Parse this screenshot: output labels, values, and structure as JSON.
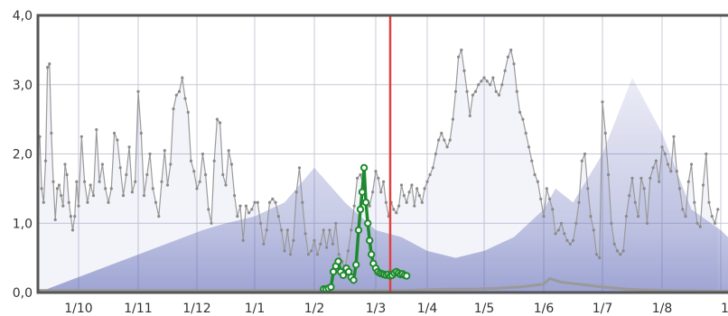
{
  "chart_data": {
    "type": "line",
    "title": "",
    "xlabel": "",
    "ylabel": "",
    "ylim": [
      0,
      4
    ],
    "y_ticks": [
      "0,0",
      "1,0",
      "2,0",
      "3,0",
      "4,0"
    ],
    "x_ticks": [
      "1/10",
      "1/11",
      "1/12",
      "1/1",
      "1/2",
      "1/3",
      "1/4",
      "1/5",
      "1/6",
      "1/7",
      "1/8",
      "1/9"
    ],
    "grid": true,
    "colors": {
      "background": "#ffffff",
      "band": "#5a64b4",
      "gray_series": "#9a9a9a",
      "green_series": "#1e8a2e",
      "marker_line": "#e04040",
      "frame": "#555555",
      "grid": "#c8c8d8"
    },
    "marker_line_x": "1/3",
    "series": [
      {
        "role": "gray-line",
        "points": [
          [
            "1/10",
            2.25
          ],
          [
            "1/10",
            1.5
          ],
          [
            "1/10",
            1.3
          ],
          [
            "1/10",
            1.9
          ],
          [
            "1/10",
            3.25
          ],
          [
            "1/10",
            3.3
          ],
          [
            "1/10",
            2.3
          ],
          [
            "1/10",
            1.6
          ],
          [
            "1/10",
            1.05
          ],
          [
            "1/10",
            1.5
          ],
          [
            "1/10",
            1.55
          ],
          [
            "1/10",
            1.4
          ],
          [
            "1/10",
            1.25
          ],
          [
            "1/10",
            1.85
          ],
          [
            "1/10",
            1.7
          ],
          [
            "1/10",
            1.3
          ],
          [
            "1/10",
            1.1
          ],
          [
            "1/10",
            0.9
          ],
          [
            "1/10",
            1.1
          ],
          [
            "1/10",
            1.6
          ],
          [
            "1/11",
            1.25
          ],
          [
            "1/11",
            2.25
          ],
          [
            "1/11",
            1.6
          ],
          [
            "1/11",
            1.3
          ],
          [
            "1/11",
            1.55
          ],
          [
            "1/11",
            1.4
          ],
          [
            "1/11",
            2.35
          ],
          [
            "1/11",
            1.6
          ],
          [
            "1/11",
            1.85
          ],
          [
            "1/11",
            1.5
          ],
          [
            "1/11",
            1.3
          ],
          [
            "1/11",
            1.5
          ],
          [
            "1/11",
            2.3
          ],
          [
            "1/11",
            2.2
          ],
          [
            "1/11",
            1.8
          ],
          [
            "1/11",
            1.4
          ],
          [
            "1/11",
            1.7
          ],
          [
            "1/11",
            2.1
          ],
          [
            "1/11",
            1.45
          ],
          [
            "1/11",
            1.6
          ],
          [
            "1/12",
            2.9
          ],
          [
            "1/12",
            2.3
          ],
          [
            "1/12",
            1.4
          ],
          [
            "1/12",
            1.7
          ],
          [
            "1/12",
            2.0
          ],
          [
            "1/12",
            1.5
          ],
          [
            "1/12",
            1.3
          ],
          [
            "1/12",
            1.1
          ],
          [
            "1/12",
            1.6
          ],
          [
            "1/12",
            2.05
          ],
          [
            "1/12",
            1.55
          ],
          [
            "1/12",
            1.85
          ],
          [
            "1/12",
            2.65
          ],
          [
            "1/12",
            2.85
          ],
          [
            "1/12",
            2.9
          ],
          [
            "1/12",
            3.1
          ],
          [
            "1/12",
            2.8
          ],
          [
            "1/12",
            2.6
          ],
          [
            "1/12",
            1.9
          ],
          [
            "1/12",
            1.75
          ],
          [
            "1/1",
            1.5
          ],
          [
            "1/1",
            1.6
          ],
          [
            "1/1",
            2.0
          ],
          [
            "1/1",
            1.7
          ],
          [
            "1/1",
            1.2
          ],
          [
            "1/1",
            1.0
          ],
          [
            "1/1",
            1.9
          ],
          [
            "1/1",
            2.5
          ],
          [
            "1/1",
            2.45
          ],
          [
            "1/1",
            1.7
          ],
          [
            "1/1",
            1.55
          ],
          [
            "1/1",
            2.05
          ],
          [
            "1/1",
            1.85
          ],
          [
            "1/1",
            1.4
          ],
          [
            "1/1",
            1.1
          ],
          [
            "1/1",
            1.25
          ],
          [
            "1/1",
            0.75
          ],
          [
            "1/1",
            1.25
          ],
          [
            "1/1",
            1.15
          ],
          [
            "1/1",
            1.2
          ],
          [
            "1/2",
            1.3
          ],
          [
            "1/2",
            1.3
          ],
          [
            "1/2",
            1.0
          ],
          [
            "1/2",
            0.7
          ],
          [
            "1/2",
            0.9
          ],
          [
            "1/2",
            1.3
          ],
          [
            "1/2",
            1.35
          ],
          [
            "1/2",
            1.3
          ],
          [
            "1/2",
            1.1
          ],
          [
            "1/2",
            0.9
          ],
          [
            "1/2",
            0.6
          ],
          [
            "1/2",
            0.9
          ],
          [
            "1/2",
            0.55
          ],
          [
            "1/2",
            0.75
          ],
          [
            "1/2",
            1.45
          ],
          [
            "1/2",
            1.8
          ],
          [
            "1/2",
            1.3
          ],
          [
            "1/2",
            0.85
          ],
          [
            "1/2",
            0.55
          ],
          [
            "1/2",
            0.6
          ],
          [
            "1/3",
            0.75
          ],
          [
            "1/3",
            0.55
          ],
          [
            "1/3",
            0.7
          ],
          [
            "1/3",
            0.9
          ],
          [
            "1/3",
            0.65
          ],
          [
            "1/3",
            0.9
          ],
          [
            "1/3",
            0.7
          ],
          [
            "1/3",
            1.0
          ],
          [
            "1/3",
            0.55
          ],
          [
            "1/3",
            0.45
          ],
          [
            "1/3",
            0.35
          ],
          [
            "1/3",
            0.6
          ],
          [
            "1/3",
            0.9
          ],
          [
            "1/3",
            1.25
          ],
          [
            "1/3",
            1.65
          ],
          [
            "1/3",
            1.7
          ],
          [
            "1/3",
            1.55
          ],
          [
            "1/3",
            1.3
          ],
          [
            "1/3",
            1.25
          ],
          [
            "1/3",
            1.45
          ],
          [
            "1/4",
            1.75
          ],
          [
            "1/4",
            1.65
          ],
          [
            "1/4",
            1.45
          ],
          [
            "1/4",
            1.6
          ],
          [
            "1/4",
            1.3
          ],
          [
            "1/4",
            1.1
          ],
          [
            "1/4",
            1.3
          ],
          [
            "1/4",
            1.2
          ],
          [
            "1/4",
            1.15
          ],
          [
            "1/4",
            1.25
          ],
          [
            "1/4",
            1.55
          ],
          [
            "1/4",
            1.4
          ],
          [
            "1/4",
            1.3
          ],
          [
            "1/4",
            1.45
          ],
          [
            "1/4",
            1.55
          ],
          [
            "1/4",
            1.25
          ],
          [
            "1/4",
            1.5
          ],
          [
            "1/4",
            1.4
          ],
          [
            "1/4",
            1.3
          ],
          [
            "1/4",
            1.5
          ],
          [
            "1/5",
            1.6
          ],
          [
            "1/5",
            1.7
          ],
          [
            "1/5",
            1.8
          ],
          [
            "1/5",
            2.0
          ],
          [
            "1/5",
            2.2
          ],
          [
            "1/5",
            2.3
          ],
          [
            "1/5",
            2.2
          ],
          [
            "1/5",
            2.1
          ],
          [
            "1/5",
            2.2
          ],
          [
            "1/5",
            2.5
          ],
          [
            "1/5",
            2.9
          ],
          [
            "1/5",
            3.4
          ],
          [
            "1/5",
            3.5
          ],
          [
            "1/5",
            3.2
          ],
          [
            "1/5",
            2.9
          ],
          [
            "1/5",
            2.55
          ],
          [
            "1/5",
            2.85
          ],
          [
            "1/5",
            2.9
          ],
          [
            "1/5",
            3.0
          ],
          [
            "1/5",
            3.05
          ],
          [
            "1/6",
            3.1
          ],
          [
            "1/6",
            3.05
          ],
          [
            "1/6",
            3.0
          ],
          [
            "1/6",
            3.1
          ],
          [
            "1/6",
            2.9
          ],
          [
            "1/6",
            2.85
          ],
          [
            "1/6",
            3.0
          ],
          [
            "1/6",
            3.2
          ],
          [
            "1/6",
            3.4
          ],
          [
            "1/6",
            3.5
          ],
          [
            "1/6",
            3.3
          ],
          [
            "1/6",
            2.9
          ],
          [
            "1/6",
            2.6
          ],
          [
            "1/6",
            2.5
          ],
          [
            "1/6",
            2.3
          ],
          [
            "1/6",
            2.1
          ],
          [
            "1/6",
            1.9
          ],
          [
            "1/6",
            1.7
          ],
          [
            "1/6",
            1.6
          ],
          [
            "1/6",
            1.35
          ],
          [
            "1/7",
            1.1
          ],
          [
            "1/7",
            1.5
          ],
          [
            "1/7",
            1.35
          ],
          [
            "1/7",
            1.2
          ],
          [
            "1/7",
            0.85
          ],
          [
            "1/7",
            0.9
          ],
          [
            "1/7",
            1.0
          ],
          [
            "1/7",
            0.85
          ],
          [
            "1/7",
            0.75
          ],
          [
            "1/7",
            0.7
          ],
          [
            "1/7",
            0.75
          ],
          [
            "1/7",
            1.0
          ],
          [
            "1/7",
            1.3
          ],
          [
            "1/7",
            1.9
          ],
          [
            "1/7",
            2.0
          ],
          [
            "1/7",
            1.5
          ],
          [
            "1/7",
            1.1
          ],
          [
            "1/7",
            0.9
          ],
          [
            "1/7",
            0.55
          ],
          [
            "1/7",
            0.5
          ],
          [
            "1/8",
            2.75
          ],
          [
            "1/8",
            2.3
          ],
          [
            "1/8",
            1.7
          ],
          [
            "1/8",
            1.0
          ],
          [
            "1/8",
            0.7
          ],
          [
            "1/8",
            0.6
          ],
          [
            "1/8",
            0.55
          ],
          [
            "1/8",
            0.6
          ],
          [
            "1/8",
            1.1
          ],
          [
            "1/8",
            1.4
          ],
          [
            "1/8",
            1.65
          ],
          [
            "1/8",
            1.3
          ],
          [
            "1/8",
            1.1
          ],
          [
            "1/8",
            1.65
          ],
          [
            "1/8",
            1.5
          ],
          [
            "1/8",
            1.0
          ],
          [
            "1/8",
            1.65
          ],
          [
            "1/8",
            1.8
          ],
          [
            "1/8",
            1.9
          ],
          [
            "1/8",
            1.6
          ],
          [
            "1/9",
            2.1
          ],
          [
            "1/9",
            2.0
          ],
          [
            "1/9",
            1.85
          ],
          [
            "1/9",
            1.75
          ],
          [
            "1/9",
            2.25
          ],
          [
            "1/9",
            1.75
          ],
          [
            "1/9",
            1.5
          ],
          [
            "1/9",
            1.2
          ],
          [
            "1/9",
            1.1
          ],
          [
            "1/9",
            1.6
          ],
          [
            "1/9",
            1.85
          ],
          [
            "1/9",
            1.3
          ],
          [
            "1/9",
            1.0
          ],
          [
            "1/9",
            0.95
          ],
          [
            "1/9",
            1.55
          ],
          [
            "1/9",
            2.0
          ],
          [
            "1/9",
            1.3
          ],
          [
            "1/9",
            1.1
          ],
          [
            "1/9",
            1.0
          ],
          [
            "1/9",
            1.2
          ]
        ]
      },
      {
        "role": "green-line",
        "points": [
          [
            0.15,
            0.05
          ],
          [
            0.19,
            0.05
          ],
          [
            0.23,
            0.06
          ],
          [
            0.27,
            0.08
          ],
          [
            0.31,
            0.3
          ],
          [
            0.35,
            0.38
          ],
          [
            0.39,
            0.45
          ],
          [
            0.43,
            0.3
          ],
          [
            0.47,
            0.25
          ],
          [
            0.52,
            0.35
          ],
          [
            0.56,
            0.3
          ],
          [
            0.6,
            0.22
          ],
          [
            0.64,
            0.18
          ],
          [
            0.68,
            0.4
          ],
          [
            0.72,
            0.9
          ],
          [
            0.75,
            1.2
          ],
          [
            0.78,
            1.45
          ],
          [
            0.81,
            1.8
          ],
          [
            0.84,
            1.3
          ],
          [
            0.87,
            1.0
          ],
          [
            0.9,
            0.75
          ],
          [
            0.93,
            0.55
          ],
          [
            0.96,
            0.42
          ],
          [
            1.0,
            0.35
          ],
          [
            1.04,
            0.3
          ],
          [
            1.08,
            0.28
          ],
          [
            1.12,
            0.27
          ],
          [
            1.16,
            0.26
          ],
          [
            1.2,
            0.25
          ],
          [
            1.24,
            0.26
          ],
          [
            1.28,
            0.24
          ],
          [
            1.32,
            0.25
          ],
          [
            1.36,
            0.28
          ],
          [
            1.4,
            0.3
          ],
          [
            1.44,
            0.28
          ],
          [
            1.48,
            0.26
          ],
          [
            1.52,
            0.27
          ],
          [
            1.56,
            0.25
          ],
          [
            1.6,
            0.24
          ]
        ]
      }
    ],
    "baseline_gray": [
      [
        -0.4,
        0.03
      ],
      [
        0.0,
        0.04
      ],
      [
        0.4,
        0.05
      ],
      [
        0.8,
        0.05
      ],
      [
        1.2,
        0.06
      ],
      [
        1.6,
        0.08
      ],
      [
        2.0,
        0.12
      ],
      [
        2.1,
        0.2
      ],
      [
        2.3,
        0.15
      ],
      [
        2.6,
        0.12
      ],
      [
        3.0,
        0.08
      ],
      [
        3.4,
        0.05
      ],
      [
        4.0,
        0.03
      ],
      [
        5.0,
        0.02
      ],
      [
        6.0,
        0.02
      ],
      [
        7.0,
        0.02
      ]
    ],
    "band_outline": [
      [
        -4.9,
        0.9
      ],
      [
        -4.5,
        1.0
      ],
      [
        -4.0,
        1.1
      ],
      [
        -3.5,
        1.3
      ],
      [
        -3.0,
        1.8
      ],
      [
        -2.5,
        1.3
      ],
      [
        -2.0,
        0.9
      ],
      [
        -1.5,
        0.8
      ],
      [
        -1.0,
        0.6
      ],
      [
        -0.5,
        0.5
      ],
      [
        0.0,
        0.6
      ],
      [
        0.5,
        0.8
      ],
      [
        1.0,
        1.2
      ],
      [
        1.2,
        1.5
      ],
      [
        1.5,
        1.3
      ],
      [
        2.0,
        2.0
      ],
      [
        2.5,
        3.1
      ],
      [
        3.0,
        2.3
      ],
      [
        3.5,
        1.2
      ],
      [
        4.0,
        0.9
      ],
      [
        4.5,
        0.8
      ],
      [
        5.0,
        0.9
      ],
      [
        5.6,
        0.8
      ]
    ]
  }
}
